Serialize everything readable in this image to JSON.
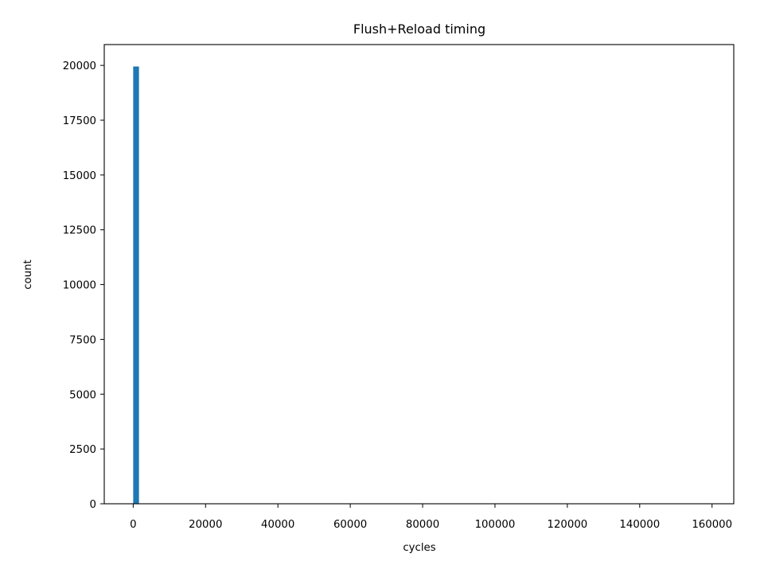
{
  "chart_data": {
    "type": "bar",
    "subtype": "histogram",
    "title": "Flush+Reload timing",
    "xlabel": "cycles",
    "ylabel": "count",
    "xlim": [
      -8000,
      166000
    ],
    "ylim": [
      0,
      20950
    ],
    "xticks": [
      0,
      20000,
      40000,
      60000,
      80000,
      100000,
      120000,
      140000,
      160000
    ],
    "yticks": [
      0,
      2500,
      5000,
      7500,
      10000,
      12500,
      15000,
      17500,
      20000
    ],
    "grid": false,
    "bin_width": 1600,
    "series": [
      {
        "color": "#1f77b4",
        "bins": [
          {
            "x0": 0,
            "x1": 1600,
            "count": 19950
          },
          {
            "x0": 1600,
            "x1": 3200,
            "count": 8
          },
          {
            "x0": 3200,
            "x1": 4800,
            "count": 3
          },
          {
            "x0": 8000,
            "x1": 9600,
            "count": 2
          },
          {
            "x0": 12800,
            "x1": 14400,
            "count": 1
          },
          {
            "x0": 24000,
            "x1": 25600,
            "count": 1
          },
          {
            "x0": 158400,
            "x1": 160000,
            "count": 1
          }
        ]
      }
    ]
  }
}
